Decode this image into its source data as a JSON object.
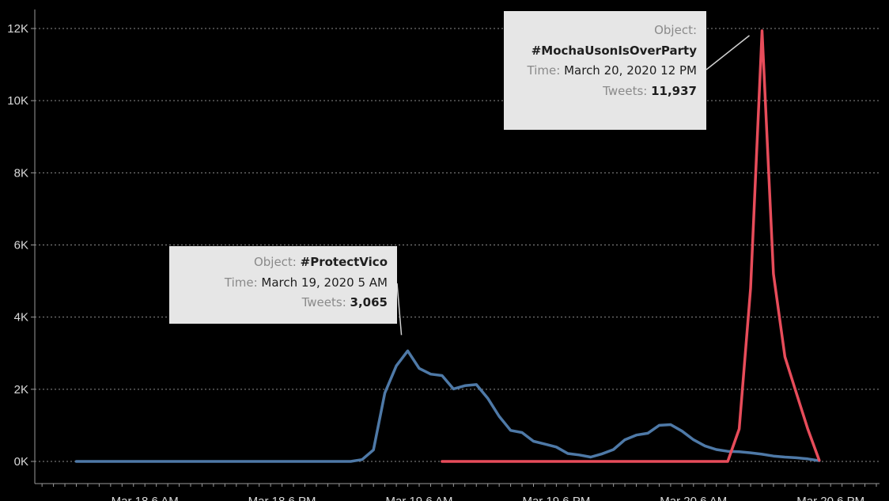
{
  "chart_data": {
    "type": "line",
    "x_ticks": [
      "Mar 18 6 AM",
      "Mar 18 6 PM",
      "Mar 19 6 AM",
      "Mar 19 6 PM",
      "Mar 20 6 AM",
      "Mar 20 6 PM"
    ],
    "y_ticks": [
      "0K",
      "2K",
      "4K",
      "6K",
      "8K",
      "10K",
      "12K"
    ],
    "ylim": [
      0,
      12000
    ],
    "grid": true,
    "series": [
      {
        "color": "#4e79a7",
        "points": [
          [
            "2020-03-18T00:00",
            0
          ],
          [
            "2020-03-18T06:00",
            0
          ],
          [
            "2020-03-18T12:00",
            0
          ],
          [
            "2020-03-18T18:00",
            0
          ],
          [
            "2020-03-19T00:00",
            0
          ],
          [
            "2020-03-19T01:00",
            50
          ],
          [
            "2020-03-19T02:00",
            320
          ],
          [
            "2020-03-19T03:00",
            1900
          ],
          [
            "2020-03-19T04:00",
            2650
          ],
          [
            "2020-03-19T05:00",
            3065
          ],
          [
            "2020-03-19T06:00",
            2580
          ],
          [
            "2020-03-19T07:00",
            2420
          ],
          [
            "2020-03-19T08:00",
            2380
          ],
          [
            "2020-03-19T09:00",
            2010
          ],
          [
            "2020-03-19T10:00",
            2100
          ],
          [
            "2020-03-19T11:00",
            2130
          ],
          [
            "2020-03-19T12:00",
            1750
          ],
          [
            "2020-03-19T13:00",
            1250
          ],
          [
            "2020-03-19T14:00",
            860
          ],
          [
            "2020-03-19T15:00",
            800
          ],
          [
            "2020-03-19T16:00",
            560
          ],
          [
            "2020-03-19T17:00",
            480
          ],
          [
            "2020-03-19T18:00",
            400
          ],
          [
            "2020-03-19T19:00",
            220
          ],
          [
            "2020-03-19T20:00",
            180
          ],
          [
            "2020-03-19T21:00",
            120
          ],
          [
            "2020-03-19T22:00",
            210
          ],
          [
            "2020-03-19T23:00",
            330
          ],
          [
            "2020-03-20T00:00",
            600
          ],
          [
            "2020-03-20T01:00",
            730
          ],
          [
            "2020-03-20T02:00",
            780
          ],
          [
            "2020-03-20T03:00",
            1000
          ],
          [
            "2020-03-20T04:00",
            1020
          ],
          [
            "2020-03-20T05:00",
            840
          ],
          [
            "2020-03-20T06:00",
            600
          ],
          [
            "2020-03-20T07:00",
            430
          ],
          [
            "2020-03-20T08:00",
            330
          ],
          [
            "2020-03-20T09:00",
            280
          ],
          [
            "2020-03-20T10:00",
            270
          ],
          [
            "2020-03-20T11:00",
            240
          ],
          [
            "2020-03-20T12:00",
            200
          ],
          [
            "2020-03-20T13:00",
            150
          ],
          [
            "2020-03-20T14:00",
            120
          ],
          [
            "2020-03-20T15:00",
            100
          ],
          [
            "2020-03-20T16:00",
            70
          ],
          [
            "2020-03-20T17:00",
            20
          ]
        ]
      },
      {
        "color": "#e74c5a",
        "points": [
          [
            "2020-03-19T08:00",
            0
          ],
          [
            "2020-03-19T20:00",
            0
          ],
          [
            "2020-03-20T06:00",
            0
          ],
          [
            "2020-03-20T09:00",
            0
          ],
          [
            "2020-03-20T10:00",
            900
          ],
          [
            "2020-03-20T11:00",
            4800
          ],
          [
            "2020-03-20T12:00",
            11937
          ],
          [
            "2020-03-20T13:00",
            5200
          ],
          [
            "2020-03-20T14:00",
            2900
          ],
          [
            "2020-03-20T15:00",
            1900
          ],
          [
            "2020-03-20T16:00",
            900
          ],
          [
            "2020-03-20T17:00",
            30
          ]
        ]
      }
    ],
    "annotations": [
      {
        "object_label": "Object:",
        "object_value": "#ProtectVico",
        "time_label": "Time:",
        "time_value": "March 19, 2020 5 AM",
        "tweets_label": "Tweets:",
        "tweets_value": "3,065",
        "point": [
          "2020-03-19T05:00",
          3065
        ]
      },
      {
        "object_label": "Object:",
        "object_value": "#MochaUsonIsOverParty",
        "time_label": "Time:",
        "time_value": "March 20, 2020 12 PM",
        "tweets_label": "Tweets:",
        "tweets_value": "11,937",
        "point": [
          "2020-03-20T12:00",
          11937
        ]
      }
    ]
  },
  "colors": {
    "background": "#000000",
    "grid": "#8c8c8c",
    "axis": "#9a9a9a",
    "text": "#d9d9d9",
    "tooltip_bg": "#e6e6e6"
  }
}
